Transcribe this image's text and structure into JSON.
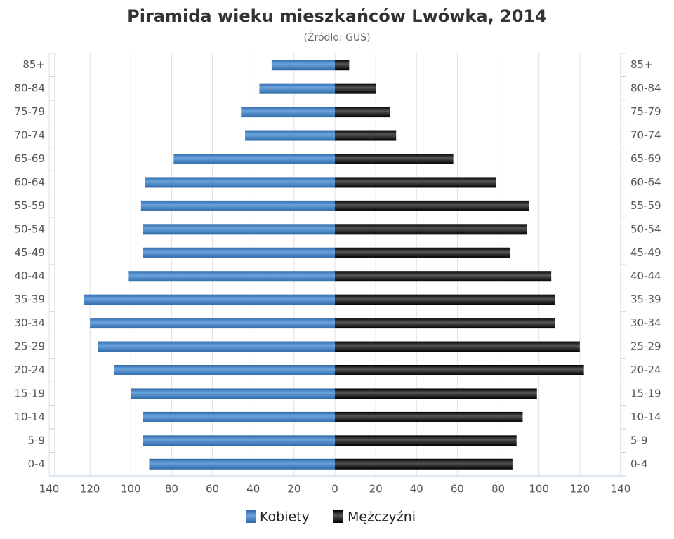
{
  "chart_data": {
    "type": "bar",
    "orientation": "horizontal",
    "title": "Piramida wieku mieszkańców Lwówka, 2014",
    "subtitle": "(Źródło: GUS)",
    "categories": [
      "85+",
      "80-84",
      "75-79",
      "70-74",
      "65-69",
      "60-64",
      "55-59",
      "50-54",
      "45-49",
      "40-44",
      "35-39",
      "30-34",
      "25-29",
      "20-24",
      "15-19",
      "10-14",
      "5-9",
      "0-4"
    ],
    "series": [
      {
        "name": "Kobiety",
        "color": "#4a86c5",
        "values": [
          -31,
          -37,
          -46,
          -44,
          -79,
          -93,
          -95,
          -94,
          -94,
          -101,
          -123,
          -120,
          -116,
          -108,
          -100,
          -94,
          -94,
          -91
        ]
      },
      {
        "name": "Mężczyźni",
        "color": "#1e1e1e",
        "values": [
          7,
          20,
          27,
          30,
          58,
          79,
          95,
          94,
          86,
          106,
          108,
          108,
          120,
          122,
          99,
          92,
          89,
          87
        ]
      }
    ],
    "xlim": [
      -140,
      140
    ],
    "xticks": [
      {
        "value": -140,
        "label": "140"
      },
      {
        "value": -120,
        "label": "120"
      },
      {
        "value": -100,
        "label": "100"
      },
      {
        "value": -80,
        "label": "80"
      },
      {
        "value": -60,
        "label": "60"
      },
      {
        "value": -40,
        "label": "40"
      },
      {
        "value": -20,
        "label": "20"
      },
      0,
      20,
      40,
      60,
      80,
      100,
      120,
      140
    ],
    "grid": true,
    "legend": "bottom"
  }
}
